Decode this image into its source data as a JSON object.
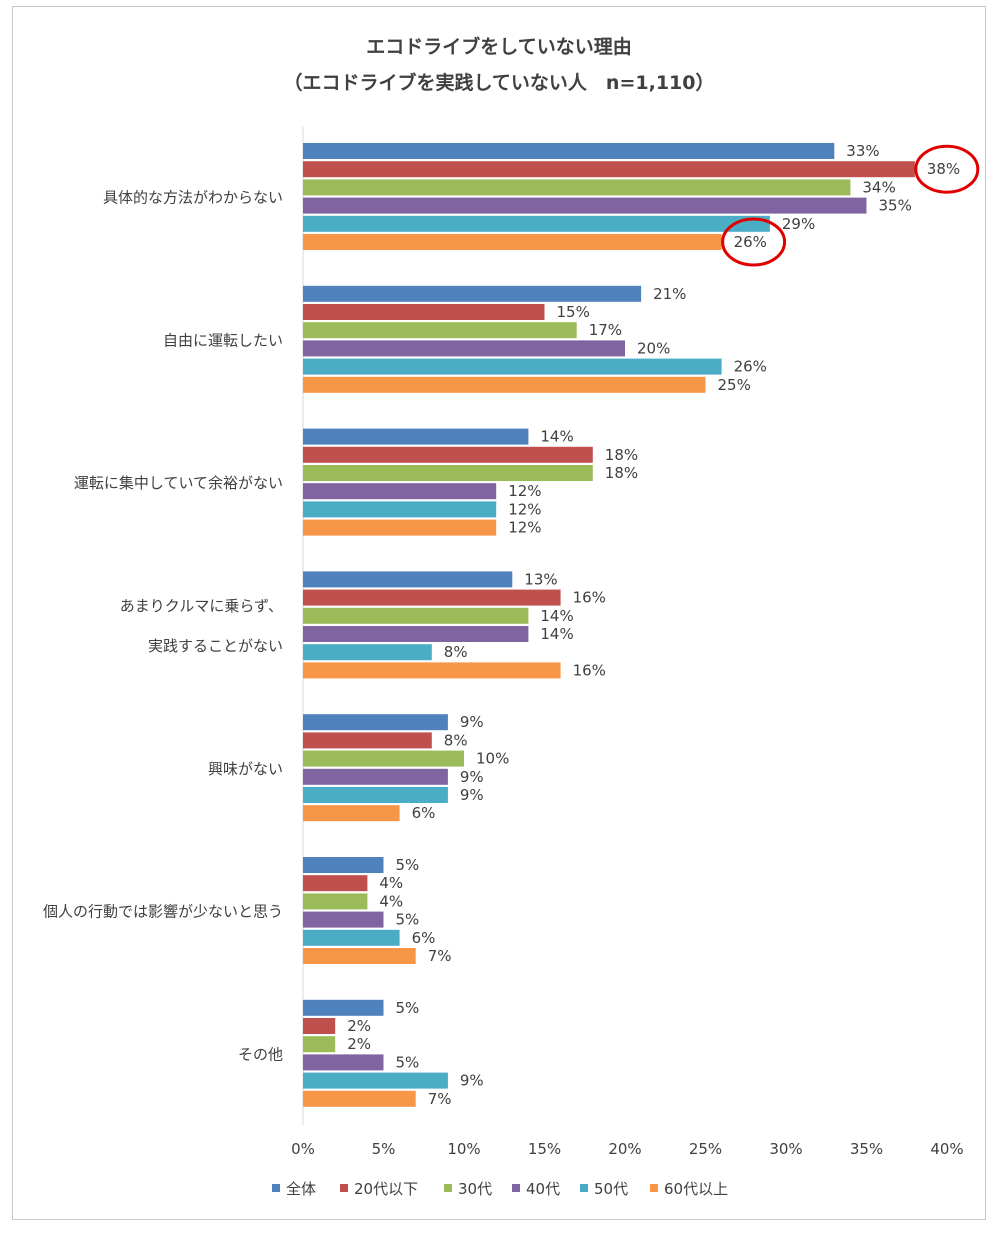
{
  "chart_data": {
    "type": "bar",
    "orientation": "horizontal",
    "title": "エコドライブをしていない理由",
    "subtitle": "（エコドライブを実践していない人　n=1,110）",
    "categories": [
      [
        "具体的な方法がわからない"
      ],
      [
        "自由に運転したい"
      ],
      [
        "運転に集中していて余裕がない"
      ],
      [
        "あまりクルマに乗らず、",
        "実践することがない"
      ],
      [
        "興味がない"
      ],
      [
        "個人の行動では影響が少ないと思う"
      ],
      [
        "その他"
      ]
    ],
    "series": [
      {
        "name": "全体",
        "color": "#4f81bd",
        "values": [
          33,
          21,
          14,
          13,
          9,
          5,
          5
        ],
        "labels": [
          "33%",
          "21%",
          "14%",
          "13%",
          "9%",
          "5%",
          "5%"
        ]
      },
      {
        "name": "20代以下",
        "color": "#c0504d",
        "values": [
          38,
          15,
          18,
          16,
          8,
          4,
          2
        ],
        "labels": [
          "38%",
          "15%",
          "18%",
          "16%",
          "8%",
          "4%",
          "2%"
        ]
      },
      {
        "name": "30代",
        "color": "#9bbb59",
        "values": [
          34,
          17,
          18,
          14,
          10,
          4,
          2
        ],
        "labels": [
          "34%",
          "17%",
          "18%",
          "14%",
          "10%",
          "4%",
          "2%"
        ]
      },
      {
        "name": "40代",
        "color": "#8064a2",
        "values": [
          35,
          20,
          12,
          14,
          9,
          5,
          5
        ],
        "labels": [
          "35%",
          "20%",
          "12%",
          "14%",
          "9%",
          "5%",
          "5%"
        ]
      },
      {
        "name": "50代",
        "color": "#4bacc6",
        "values": [
          29,
          26,
          12,
          8,
          9,
          6,
          9
        ],
        "labels": [
          "29%",
          "26%",
          "12%",
          "8%",
          "9%",
          "6%",
          "9%"
        ]
      },
      {
        "name": "60代以上",
        "color": "#f79646",
        "values": [
          26,
          25,
          12,
          16,
          6,
          7,
          7
        ],
        "labels": [
          "26%",
          "25%",
          "12%",
          "16%",
          "6%",
          "7%",
          "7%"
        ]
      }
    ],
    "xlim": [
      0,
      40
    ],
    "xticks": [
      "0%",
      "5%",
      "10%",
      "15%",
      "20%",
      "25%",
      "30%",
      "35%",
      "40%"
    ],
    "legend_position": "bottom",
    "highlights": [
      {
        "category_index": 0,
        "series_index": 1,
        "color": "#e00000"
      },
      {
        "category_index": 0,
        "series_index": 5,
        "color": "#e00000"
      }
    ],
    "grid": false
  }
}
